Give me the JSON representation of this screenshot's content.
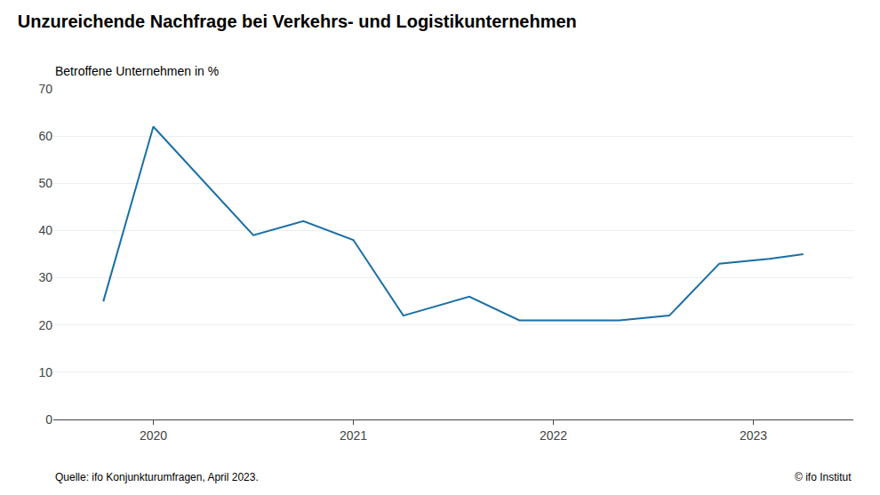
{
  "chart_data": {
    "type": "line",
    "title": "Unzureichende Nachfrage bei Verkehrs- und Logistikunternehmen",
    "ylabel": "Betroffene Unternehmen in %",
    "annotations": [
      "Quelle: ifo Konjunkturumfragen, April 2023.",
      "© ifo Institut"
    ],
    "x": [
      2019.75,
      2020.0,
      2020.5,
      2020.75,
      2021.0,
      2021.25,
      2021.58,
      2021.83,
      2022.08,
      2022.33,
      2022.58,
      2022.83,
      2023.08,
      2023.25
    ],
    "values": [
      25,
      62,
      39,
      42,
      38,
      22,
      26,
      21,
      21,
      21,
      22,
      33,
      34,
      35
    ],
    "color": "#1a6fa6",
    "xlim": [
      2019.5,
      2023.5
    ],
    "xticks": [
      2020,
      2021,
      2022,
      2023
    ],
    "ylim": [
      0,
      70
    ],
    "yticks": [
      0,
      10,
      20,
      30,
      40,
      50,
      60,
      70
    ],
    "grid": true
  }
}
